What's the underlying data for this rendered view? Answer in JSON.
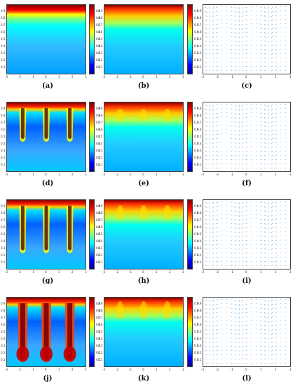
{
  "figure": {
    "captions": [
      "(a)",
      "(b)",
      "(c)",
      "(d)",
      "(e)",
      "(f)",
      "(g)",
      "(h)",
      "(i)",
      "(j)",
      "(k)",
      "(l)"
    ],
    "x_ticks": [
      "-3",
      "-2",
      "-1",
      "0",
      "1",
      "2",
      "3"
    ],
    "y_ticks_a": [
      "0.1",
      "0.2",
      "0.3",
      "0.4",
      "0.5",
      "0.6",
      "0.7",
      "0.8",
      "0.9"
    ],
    "y_ticks_small": [
      "0.1",
      "0.2",
      "0.3",
      "0.4",
      "0.5",
      "0.6",
      "0.7",
      "0.8",
      "0.9"
    ],
    "cbar_ticks": [
      "0.1",
      "0.2",
      "0.3",
      "0.4",
      "0.5",
      "0.6",
      "0.7",
      "0.8",
      "0.9"
    ],
    "colors": {
      "dark_red": "#800000",
      "red": "#ff0000",
      "yellow": "#ffff00",
      "cyan": "#00ffff",
      "blue": "#0000ff",
      "vector": "#3a8fd8"
    }
  }
}
